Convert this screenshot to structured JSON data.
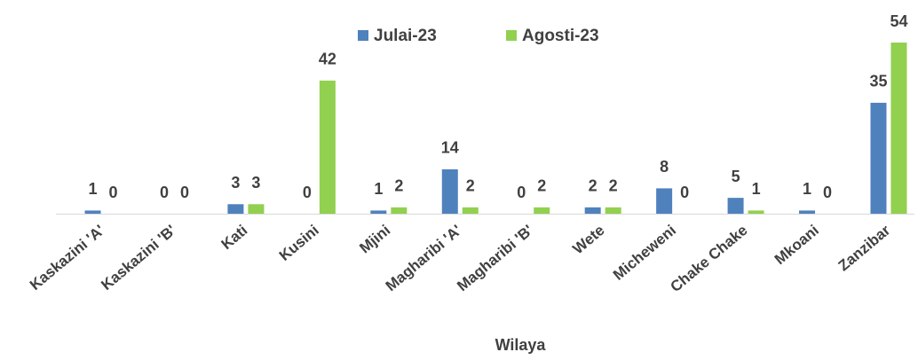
{
  "chart_data": {
    "type": "bar",
    "x_label": "Wilaya",
    "categories": [
      "Kaskazini 'A'",
      "Kaskazini 'B'",
      "Kati",
      "Kusini",
      "Mjini",
      "Magharibi 'A'",
      "Magharibi 'B'",
      "Wete",
      "Micheweni",
      "Chake Chake",
      "Mkoani",
      "Zanzibar"
    ],
    "series": [
      {
        "name": "Julai-23",
        "color": "#4f81bd",
        "values": [
          1,
          0,
          3,
          0,
          1,
          14,
          0,
          2,
          8,
          5,
          1,
          35
        ]
      },
      {
        "name": "Agosti-23",
        "color": "#92d050",
        "values": [
          0,
          0,
          3,
          42,
          2,
          2,
          2,
          2,
          0,
          1,
          0,
          54
        ]
      }
    ],
    "legend": "top",
    "ylim": [
      0,
      54
    ]
  }
}
